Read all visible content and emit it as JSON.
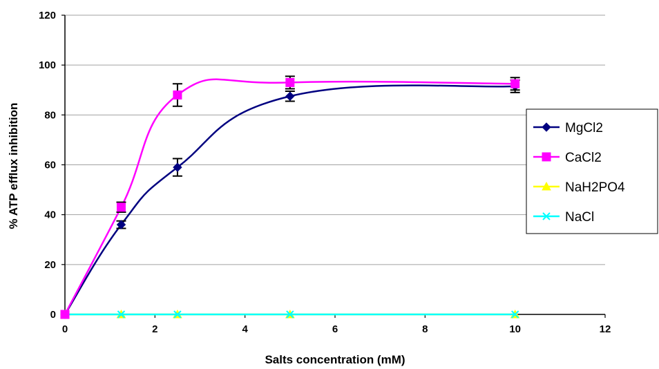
{
  "chart_data": {
    "type": "line",
    "title": "",
    "xlabel": "Salts concentration (mM)",
    "ylabel": "% ATP efflux inhibition",
    "xlim": [
      0,
      12
    ],
    "ylim": [
      0,
      120
    ],
    "x_ticks": [
      "0",
      "2",
      "4",
      "6",
      "8",
      "10",
      "12"
    ],
    "y_ticks": [
      "0",
      "20",
      "40",
      "60",
      "80",
      "100",
      "120"
    ],
    "grid": "horizontal",
    "legend": "right",
    "series": [
      {
        "name": "MgCl2",
        "color": "#000080",
        "marker": "diamond",
        "x": [
          0,
          1.25,
          2.5,
          5,
          10
        ],
        "y": [
          0,
          36,
          59,
          87.5,
          91.5
        ],
        "err": [
          0,
          1.5,
          3.5,
          2,
          2.5
        ]
      },
      {
        "name": "CaCl2",
        "color": "#FF00FF",
        "marker": "square",
        "x": [
          0,
          1.25,
          2.5,
          5,
          10
        ],
        "y": [
          0,
          43,
          88,
          93,
          92.5
        ],
        "err": [
          0,
          2,
          4.5,
          2.5,
          2.5
        ]
      },
      {
        "name": "NaH2PO4",
        "color": "#FFFF00",
        "marker": "triangle",
        "x": [
          0,
          1.25,
          2.5,
          5,
          10
        ],
        "y": [
          0,
          0,
          0,
          0,
          0
        ],
        "err": [
          0,
          0,
          0,
          0,
          0
        ]
      },
      {
        "name": "NaCl",
        "color": "#00FFFF",
        "marker": "x",
        "x": [
          0,
          1.25,
          2.5,
          5,
          10
        ],
        "y": [
          0,
          0,
          0,
          0,
          0
        ],
        "err": [
          0,
          0,
          0,
          0,
          0
        ]
      }
    ]
  }
}
